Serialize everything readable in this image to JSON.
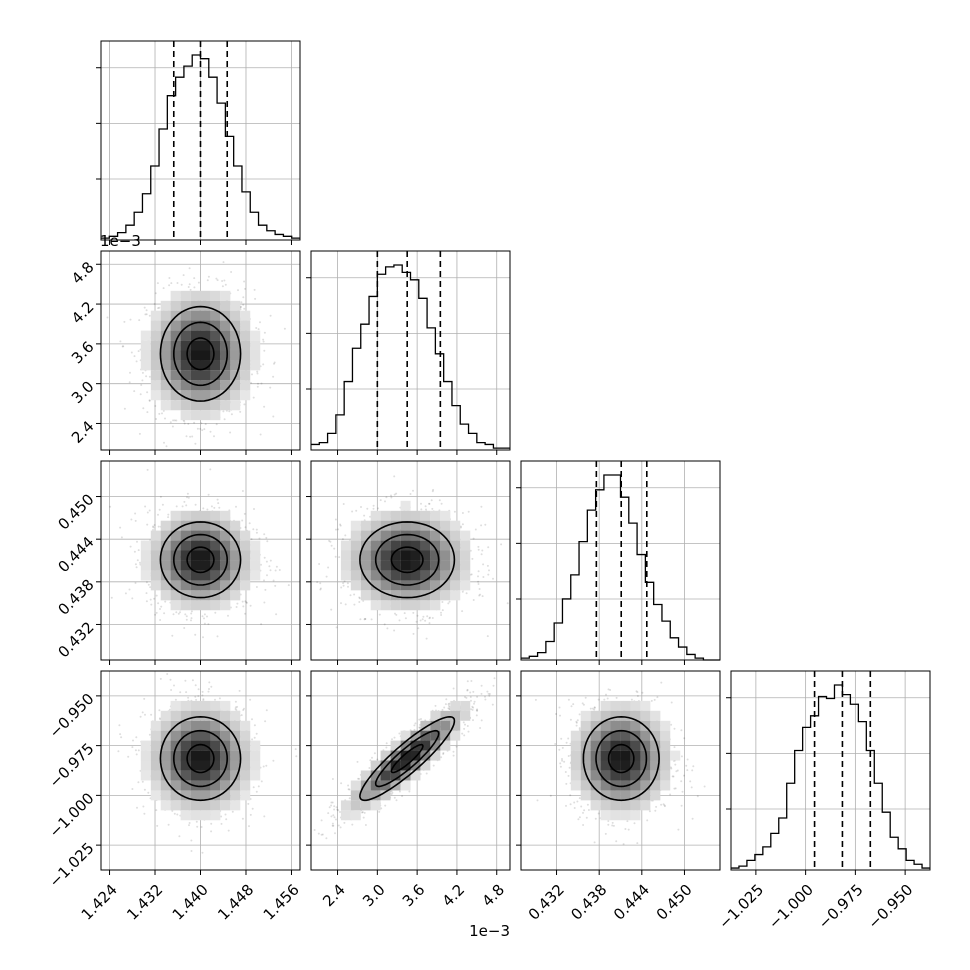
{
  "chart_data": {
    "type": "corner",
    "params": [
      {
        "range": [
          1.4225,
          1.4575
        ],
        "ticks": [
          1.424,
          1.432,
          1.44,
          1.448,
          1.456
        ],
        "tick_labels": [
          "1.424",
          "1.432",
          "1.440",
          "1.448",
          "1.456"
        ],
        "offset_label": "",
        "quantiles": [
          1.4353,
          1.44,
          1.4447
        ],
        "hist": [
          1,
          2,
          4,
          8,
          15,
          25,
          40,
          60,
          78,
          88,
          94,
          100,
          98,
          88,
          74,
          56,
          40,
          26,
          15,
          8,
          5,
          3,
          2,
          1
        ]
      },
      {
        "range": [
          2.0,
          5.0
        ],
        "ticks": [
          2.4,
          3.0,
          3.6,
          4.2,
          4.8
        ],
        "tick_labels": [
          "2.4",
          "3.0",
          "3.6",
          "4.2",
          "4.8"
        ],
        "offset_label": "1e−3",
        "quantiles": [
          3.0,
          3.45,
          3.95
        ],
        "hist": [
          3,
          4,
          9,
          19,
          37,
          55,
          68,
          83,
          95,
          99,
          100,
          96,
          92,
          82,
          66,
          52,
          37,
          24,
          14,
          9,
          4,
          3,
          1,
          1
        ]
      },
      {
        "range": [
          0.427,
          0.455
        ],
        "ticks": [
          0.432,
          0.438,
          0.444,
          0.45
        ],
        "tick_labels": [
          "0.432",
          "0.438",
          "0.444",
          "0.450"
        ],
        "offset_label": "",
        "quantiles": [
          0.4376,
          0.4411,
          0.4447
        ],
        "hist": [
          1,
          2,
          4,
          10,
          20,
          33,
          46,
          64,
          81,
          92,
          100,
          100,
          88,
          74,
          57,
          42,
          30,
          21,
          12,
          7,
          3,
          1,
          0,
          0
        ]
      },
      {
        "range": [
          -1.0375,
          -0.9375
        ],
        "ticks": [
          -1.025,
          -1.0,
          -0.975,
          -0.95
        ],
        "tick_labels": [
          "−1.025",
          "−1.000",
          "−0.975",
          "−0.950"
        ],
        "offset_label": "",
        "quantiles": [
          -0.9955,
          -0.9815,
          -0.9675
        ],
        "hist": [
          1,
          2,
          5,
          8,
          12,
          19,
          27,
          45,
          62,
          74,
          80,
          90,
          89,
          96,
          91,
          86,
          77,
          62,
          45,
          30,
          17,
          11,
          5,
          3,
          1
        ]
      }
    ],
    "pairs": [
      {
        "row": 1,
        "col": 0,
        "corr": 0.0
      },
      {
        "row": 2,
        "col": 0,
        "corr": 0.0
      },
      {
        "row": 2,
        "col": 1,
        "corr": 0.0
      },
      {
        "row": 3,
        "col": 0,
        "corr": 0.0
      },
      {
        "row": 3,
        "col": 1,
        "corr": 0.9
      },
      {
        "row": 3,
        "col": 2,
        "corr": 0.0
      }
    ],
    "grid": true,
    "quantile_line_style": "dashed",
    "contour_levels": 3
  }
}
